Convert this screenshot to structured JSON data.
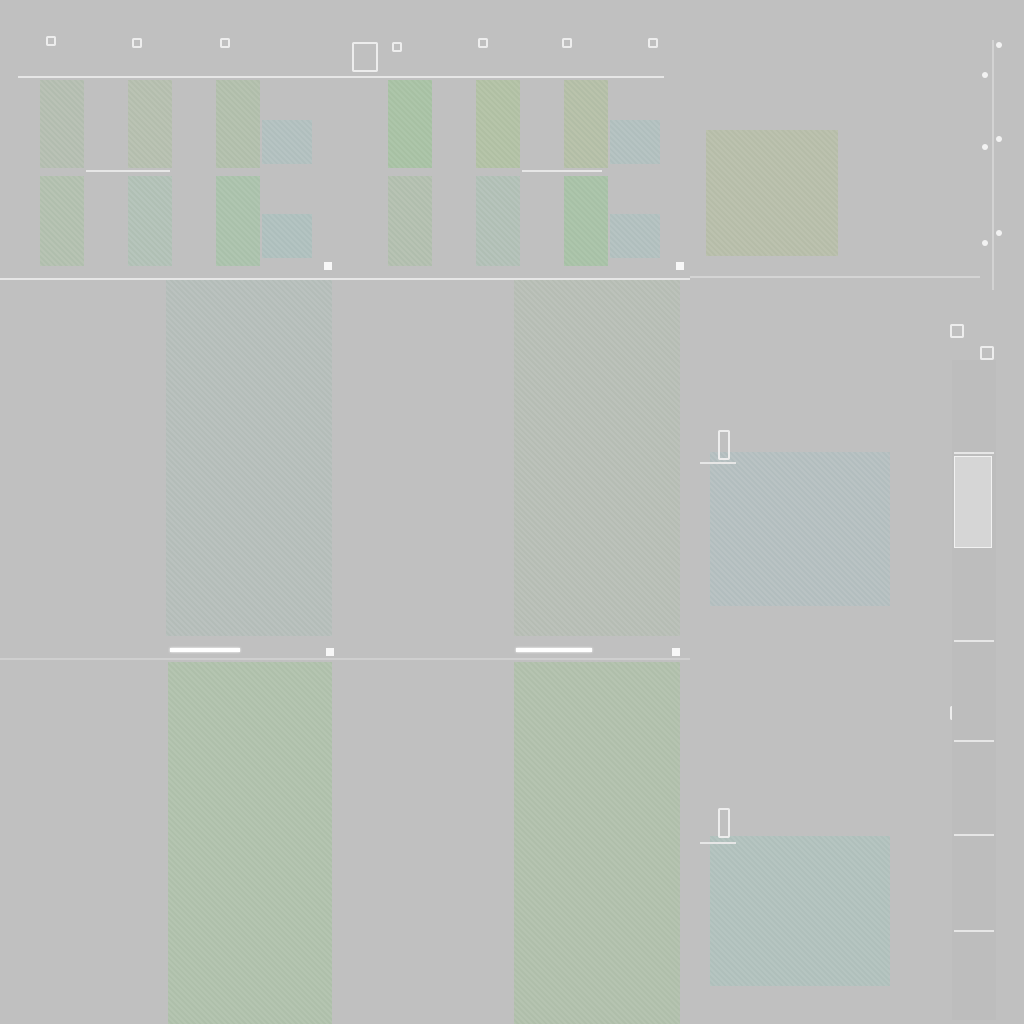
{
  "window": {
    "title": ""
  },
  "colors": {
    "background": "#c0c0c0",
    "tile_green": "#aebfa6",
    "tile_teal": "#b3c1c3",
    "tile_olive": "#b8bfa9",
    "tile_neutral": "#b7bdbc"
  },
  "icons": {
    "top_bar_icons": [
      "square-icon",
      "square-icon",
      "square-icon",
      "square-icon",
      "square-icon",
      "square-icon"
    ],
    "right_rail_icons": [
      "dot-icon",
      "dot-icon",
      "dot-icon",
      "dot-icon",
      "dot-icon",
      "dot-icon"
    ]
  }
}
